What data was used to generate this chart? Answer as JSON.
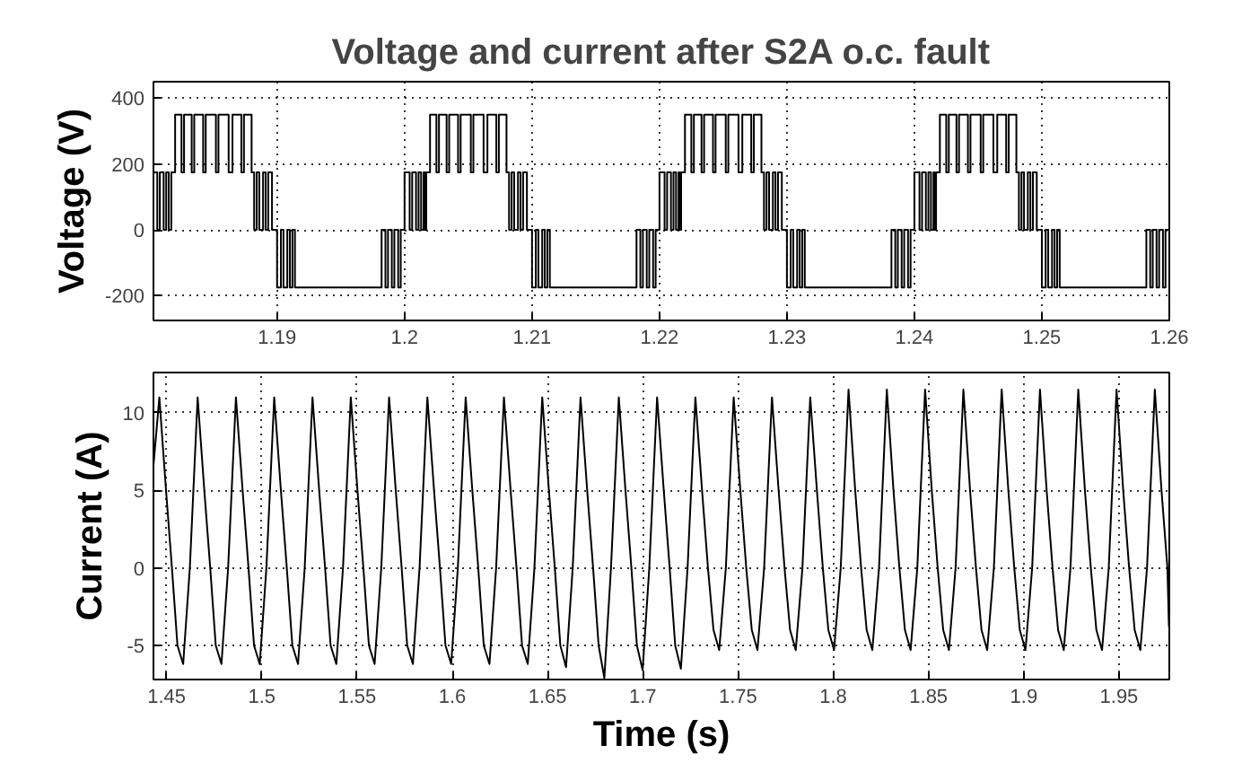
{
  "chart_data": [
    {
      "type": "step",
      "title": "Voltage and current after S2A o.c. fault",
      "ylabel": "Voltage (V)",
      "xlim": [
        1.1803,
        1.26
      ],
      "xticks": [
        1.19,
        1.2,
        1.21,
        1.22,
        1.23,
        1.24,
        1.25,
        1.26
      ],
      "ylim": [
        -275,
        450
      ],
      "yticks": [
        -200,
        0,
        200,
        400
      ],
      "grid": true,
      "x": [
        1.1803,
        1.1806,
        1.1808,
        1.1811,
        1.1813,
        1.1815,
        1.1817,
        1.182,
        1.1825,
        1.1827,
        1.1833,
        1.1835,
        1.1842,
        1.1844,
        1.1852,
        1.1854,
        1.1862,
        1.1865,
        1.1872,
        1.1874,
        1.188,
        1.1882,
        1.1884,
        1.1886,
        1.1889,
        1.1891,
        1.1893,
        1.1896,
        1.19,
        1.1903,
        1.1905,
        1.1908,
        1.191,
        1.1912,
        1.1914,
        1.1982,
        1.1985,
        1.1987,
        1.199,
        1.1992,
        1.1995,
        1.1997,
        1.2,
        1.2004,
        1.2006,
        1.2009,
        1.2011,
        1.2013,
        1.2015,
        1.2016,
        1.2017,
        1.202,
        1.2025,
        1.2027,
        1.2033,
        1.2035,
        1.2042,
        1.2044,
        1.2052,
        1.2054,
        1.2062,
        1.2065,
        1.2072,
        1.2074,
        1.208,
        1.2082,
        1.2084,
        1.2086,
        1.2089,
        1.2091,
        1.2093,
        1.2096,
        1.21,
        1.2103,
        1.2105,
        1.2108,
        1.211,
        1.2112,
        1.2114,
        1.2182,
        1.2185,
        1.2187,
        1.219,
        1.2192,
        1.2195,
        1.2197,
        1.22,
        1.2204,
        1.2206,
        1.2209,
        1.2211,
        1.2213,
        1.2215,
        1.2216,
        1.2217,
        1.222,
        1.2225,
        1.2227,
        1.2233,
        1.2235,
        1.2242,
        1.2244,
        1.2252,
        1.2254,
        1.2262,
        1.2265,
        1.2272,
        1.2274,
        1.228,
        1.2282,
        1.2284,
        1.2286,
        1.2289,
        1.2291,
        1.2293,
        1.2296,
        1.23,
        1.2303,
        1.2305,
        1.2308,
        1.231,
        1.2312,
        1.2314,
        1.2382,
        1.2385,
        1.2387,
        1.239,
        1.2392,
        1.2395,
        1.2397,
        1.24,
        1.2404,
        1.2406,
        1.2409,
        1.2411,
        1.2413,
        1.2415,
        1.2416,
        1.2417,
        1.242,
        1.2425,
        1.2427,
        1.2433,
        1.2435,
        1.2442,
        1.2444,
        1.2452,
        1.2454,
        1.2462,
        1.2465,
        1.2472,
        1.2474,
        1.248,
        1.2482,
        1.2484,
        1.2486,
        1.2489,
        1.2491,
        1.2493,
        1.2496,
        1.25,
        1.2503,
        1.2505,
        1.2508,
        1.251,
        1.2512,
        1.2514,
        1.2582,
        1.2585,
        1.2587,
        1.259,
        1.2592,
        1.2595,
        1.2597,
        1.26
      ],
      "series": [
        {
          "color": "#000000",
          "values": [
            175,
            0,
            175,
            0,
            175,
            0,
            175,
            350,
            175,
            350,
            175,
            350,
            175,
            350,
            175,
            350,
            175,
            350,
            175,
            350,
            175,
            0,
            175,
            0,
            175,
            0,
            175,
            0,
            -175,
            0,
            -175,
            0,
            -175,
            0,
            -175,
            0,
            -175,
            0,
            -175,
            0,
            -175,
            0,
            175,
            0,
            175,
            0,
            175,
            0,
            175,
            0,
            175,
            350,
            175,
            350,
            175,
            350,
            175,
            350,
            175,
            350,
            175,
            350,
            175,
            350,
            175,
            0,
            175,
            0,
            175,
            0,
            175,
            0,
            -175,
            0,
            -175,
            0,
            -175,
            0,
            -175,
            0,
            -175,
            0,
            -175,
            0,
            -175,
            0,
            175,
            0,
            175,
            0,
            175,
            0,
            175,
            0,
            175,
            350,
            175,
            350,
            175,
            350,
            175,
            350,
            175,
            350,
            175,
            350,
            175,
            350,
            175,
            0,
            175,
            0,
            175,
            0,
            175,
            0,
            -175,
            0,
            -175,
            0,
            -175,
            0,
            -175,
            0,
            -175,
            0,
            -175,
            0,
            -175,
            0,
            175,
            0,
            175,
            0,
            175,
            0,
            175,
            0,
            175,
            350,
            175,
            350,
            175,
            350,
            175,
            350,
            175,
            350,
            175,
            350,
            175,
            350,
            175,
            0,
            175,
            0,
            175,
            0,
            175,
            0,
            -175,
            0,
            -175,
            0,
            -175,
            0,
            -175,
            0,
            -175,
            0,
            -175,
            0,
            -175,
            0,
            0
          ]
        }
      ]
    },
    {
      "type": "line",
      "xlabel": "Time (s)",
      "ylabel": "Current (A)",
      "xlim": [
        1.4431,
        1.9764
      ],
      "xticks": [
        1.45,
        1.5,
        1.55,
        1.6,
        1.65,
        1.7,
        1.75,
        1.8,
        1.85,
        1.9,
        1.95
      ],
      "ylim": [
        -7.2,
        12.6
      ],
      "yticks": [
        -5,
        0,
        5,
        10
      ],
      "grid": true,
      "x": [
        1.4431,
        1.4462,
        1.4497,
        1.4528,
        1.4557,
        1.4587,
        1.4622,
        1.4663,
        1.4698,
        1.4729,
        1.4758,
        1.4788,
        1.4823,
        1.4864,
        1.4899,
        1.493,
        1.4959,
        1.4989,
        1.5024,
        1.5065,
        1.51,
        1.5131,
        1.516,
        1.519,
        1.5225,
        1.5266,
        1.5301,
        1.5332,
        1.5361,
        1.5391,
        1.5426,
        1.5467,
        1.5502,
        1.5533,
        1.5562,
        1.5592,
        1.5627,
        1.5668,
        1.5703,
        1.5734,
        1.5763,
        1.5793,
        1.5828,
        1.5869,
        1.5904,
        1.5935,
        1.5964,
        1.5994,
        1.6029,
        1.607,
        1.6105,
        1.6136,
        1.6165,
        1.6195,
        1.623,
        1.6271,
        1.6306,
        1.6337,
        1.6366,
        1.6396,
        1.6431,
        1.6472,
        1.6507,
        1.6538,
        1.6567,
        1.6597,
        1.6632,
        1.6673,
        1.6708,
        1.6739,
        1.6768,
        1.6798,
        1.6833,
        1.6874,
        1.6909,
        1.694,
        1.6969,
        1.6999,
        1.7034,
        1.7075,
        1.711,
        1.7141,
        1.717,
        1.72,
        1.7235,
        1.7276,
        1.7311,
        1.7342,
        1.7371,
        1.7401,
        1.7436,
        1.7477,
        1.7512,
        1.7543,
        1.7572,
        1.7602,
        1.7637,
        1.7678,
        1.7713,
        1.7744,
        1.7773,
        1.7803,
        1.7838,
        1.7879,
        1.7914,
        1.7945,
        1.7974,
        1.8004,
        1.8039,
        1.808,
        1.8115,
        1.8146,
        1.8175,
        1.8205,
        1.824,
        1.8281,
        1.8316,
        1.8347,
        1.8376,
        1.8406,
        1.8441,
        1.8482,
        1.8517,
        1.8548,
        1.8577,
        1.8607,
        1.8642,
        1.8683,
        1.8718,
        1.8749,
        1.8778,
        1.8808,
        1.8843,
        1.8884,
        1.8919,
        1.895,
        1.8979,
        1.9009,
        1.9044,
        1.9085,
        1.912,
        1.9151,
        1.918,
        1.921,
        1.9245,
        1.9286,
        1.9321,
        1.9352,
        1.9381,
        1.9411,
        1.9446,
        1.9487,
        1.9522,
        1.9553,
        1.9582,
        1.9612,
        1.9647,
        1.9688,
        1.9723,
        1.9754,
        1.9762
      ],
      "series": [
        {
          "color": "#000000",
          "values": [
            6.6,
            11,
            5,
            0,
            -5,
            -6.2,
            0,
            11,
            5,
            0,
            -5,
            -6.2,
            0,
            11,
            5,
            0,
            -5,
            -6.2,
            0,
            11,
            5,
            0,
            -5,
            -6.2,
            0,
            11,
            5,
            0,
            -5,
            -6.2,
            0,
            11,
            5,
            0,
            -5,
            -6.2,
            0,
            11,
            5,
            0,
            -5,
            -6.2,
            0,
            11,
            5,
            0,
            -5,
            -6.2,
            0,
            11,
            5,
            0,
            -5,
            -6.2,
            0,
            11,
            5,
            0,
            -5,
            -6.2,
            0,
            11,
            5,
            0,
            -5,
            -6.4,
            0,
            11,
            5,
            0,
            -5,
            -7.1,
            0,
            11,
            5,
            0,
            -5,
            -6.6,
            0,
            11,
            5,
            0,
            -5,
            -6.5,
            0,
            11,
            5,
            0,
            -4,
            -5.3,
            0,
            11,
            5,
            0,
            -4,
            -5.3,
            0,
            11,
            5,
            0,
            -4,
            -5.3,
            0,
            11,
            5,
            0,
            -4,
            -5.3,
            0,
            11.5,
            5,
            0,
            -4,
            -5.3,
            0,
            11.5,
            5,
            0,
            -4,
            -5.3,
            0,
            11.5,
            5,
            0,
            -4,
            -5.3,
            0,
            11.5,
            5,
            0,
            -4,
            -5.3,
            0,
            11.5,
            5,
            0,
            -4,
            -5.3,
            0,
            11.5,
            5,
            0,
            -4,
            -5.3,
            0,
            11.5,
            5,
            0,
            -4,
            -5.3,
            0,
            11.5,
            5,
            0,
            -4,
            -5.3,
            0,
            11.5,
            5,
            0,
            -3.8
          ]
        }
      ]
    }
  ]
}
